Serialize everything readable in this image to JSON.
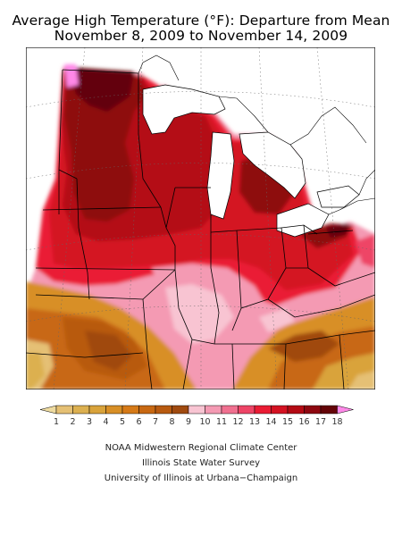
{
  "title_line1": "Average High Temperature (°F): Departure from Mean",
  "title_line2": "November 8, 2009 to November 14, 2009",
  "legend": {
    "ticks": [
      "1",
      "2",
      "3",
      "4",
      "5",
      "6",
      "7",
      "8",
      "9",
      "10",
      "11",
      "12",
      "13",
      "14",
      "15",
      "16",
      "17",
      "18"
    ],
    "bins": [
      {
        "color": "#e5c074"
      },
      {
        "color": "#dcb050"
      },
      {
        "color": "#d9a33b"
      },
      {
        "color": "#d88f26"
      },
      {
        "color": "#d67a18"
      },
      {
        "color": "#c86812"
      },
      {
        "color": "#b85a10"
      },
      {
        "color": "#a04a10"
      },
      {
        "color": "#f8c4d2"
      },
      {
        "color": "#f49ab3"
      },
      {
        "color": "#f07090"
      },
      {
        "color": "#ee4466"
      },
      {
        "color": "#ea1c34"
      },
      {
        "color": "#d41222"
      },
      {
        "color": "#b40a14"
      },
      {
        "color": "#8e0710"
      },
      {
        "color": "#640408"
      }
    ],
    "under_color": "#eedba0",
    "over_color": "#ff88e8"
  },
  "credits": [
    "NOAA Midwestern Regional Climate Center",
    "Illinois State Water Survey",
    "University of Illinois at Urbana−Champaign"
  ]
}
